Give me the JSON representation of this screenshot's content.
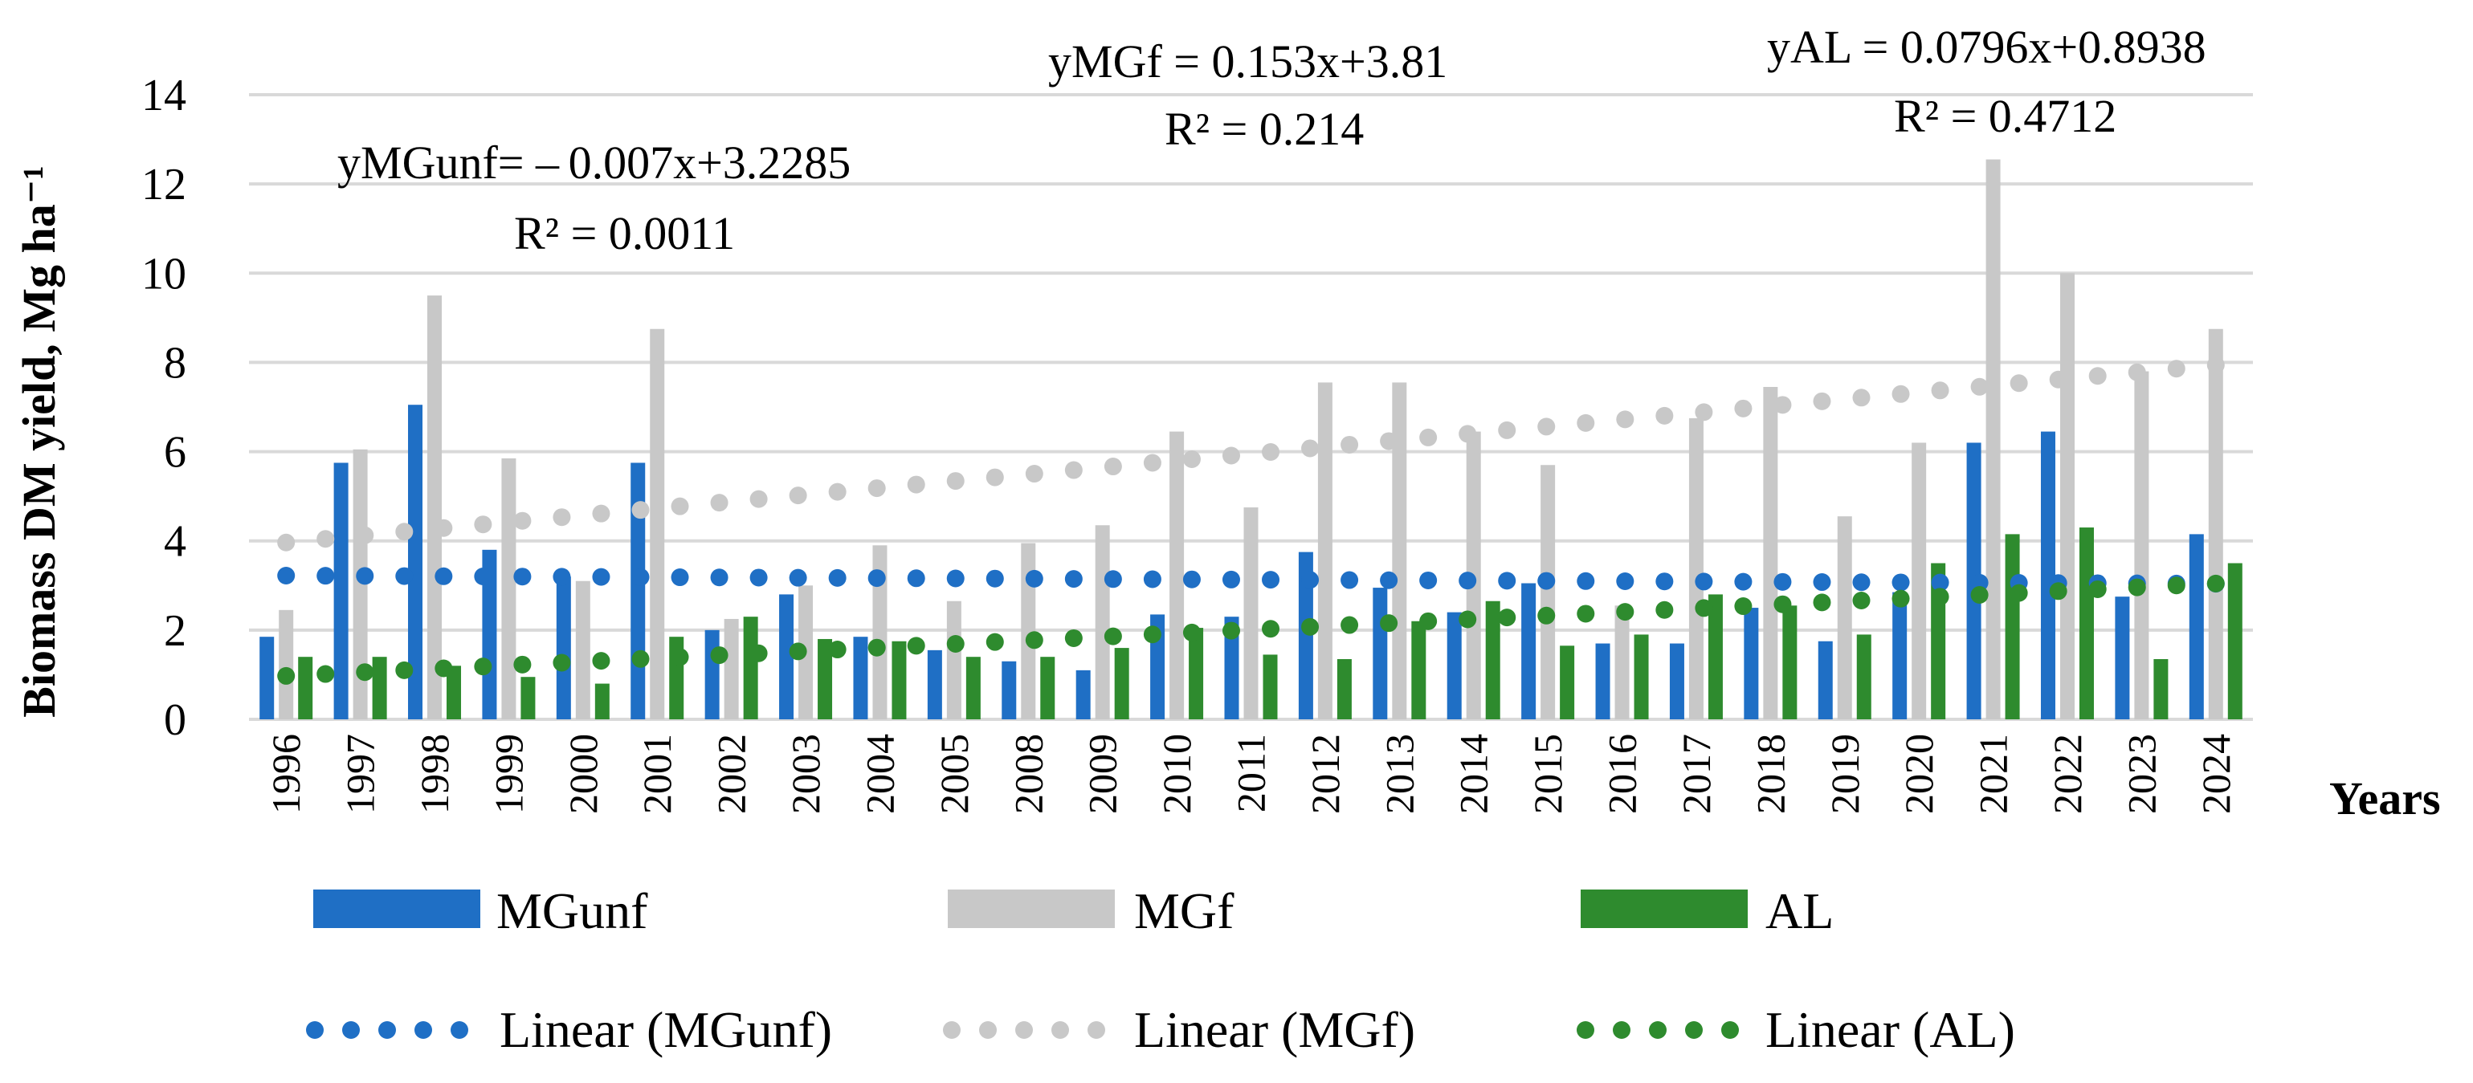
{
  "chart_data": {
    "type": "bar",
    "title": "",
    "ylabel": "Biomass DM yield, Mg ha⁻¹",
    "xlabel": "Years",
    "ylim": [
      0,
      14
    ],
    "yticks": [
      0,
      2,
      4,
      6,
      8,
      10,
      12,
      14
    ],
    "grid": true,
    "legend_position": "bottom",
    "categories": [
      "1996",
      "1997",
      "1998",
      "1999",
      "2000",
      "2001",
      "2002",
      "2003",
      "2004",
      "2005",
      "2008",
      "2009",
      "2010",
      "2011",
      "2012",
      "2013",
      "2014",
      "2015",
      "2016",
      "2017",
      "2018",
      "2019",
      "2020",
      "2021",
      "2022",
      "2023",
      "2024"
    ],
    "series": [
      {
        "name": "MGunf",
        "color": "#1f6fc5",
        "values": [
          1.85,
          5.75,
          7.05,
          3.8,
          3.2,
          5.75,
          2.0,
          2.8,
          1.85,
          1.55,
          1.3,
          1.1,
          2.35,
          2.3,
          3.75,
          2.95,
          2.4,
          3.05,
          1.7,
          1.7,
          2.5,
          1.75,
          2.85,
          6.2,
          6.45,
          2.75,
          4.15
        ]
      },
      {
        "name": "MGf",
        "color": "#c8c8c8",
        "values": [
          2.45,
          6.05,
          9.5,
          5.85,
          3.1,
          8.75,
          2.25,
          3.0,
          3.9,
          2.65,
          3.95,
          4.35,
          6.45,
          4.75,
          7.55,
          7.55,
          6.45,
          5.7,
          2.55,
          6.75,
          7.45,
          4.55,
          6.2,
          12.55,
          10.0,
          7.8,
          8.75
        ]
      },
      {
        "name": "AL",
        "color": "#2e8b2e",
        "values": [
          1.4,
          1.4,
          1.2,
          0.95,
          0.8,
          1.85,
          2.3,
          1.8,
          1.75,
          1.4,
          1.4,
          1.6,
          2.05,
          1.45,
          1.35,
          2.2,
          2.65,
          1.65,
          1.9,
          2.8,
          2.55,
          1.9,
          3.5,
          4.15,
          4.3,
          1.35,
          3.5
        ]
      }
    ],
    "trendlines": [
      {
        "name": "Linear (MGunf)",
        "series": "MGunf",
        "color": "#1f6fc5",
        "slope": -0.007,
        "intercept": 3.2285,
        "equation": "yMGunf= – 0.007x+3.2285",
        "r2": "R² = 0.0011"
      },
      {
        "name": "Linear (MGf)",
        "series": "MGf",
        "color": "#c8c8c8",
        "slope": 0.153,
        "intercept": 3.81,
        "equation": "yMGf = 0.153x+3.81",
        "r2": "R² = 0.214"
      },
      {
        "name": "Linear (AL)",
        "series": "AL",
        "color": "#2e8b2e",
        "slope": 0.0796,
        "intercept": 0.8938,
        "equation": "yAL = 0.0796x+0.8938",
        "r2": "R² = 0.4712"
      }
    ]
  }
}
